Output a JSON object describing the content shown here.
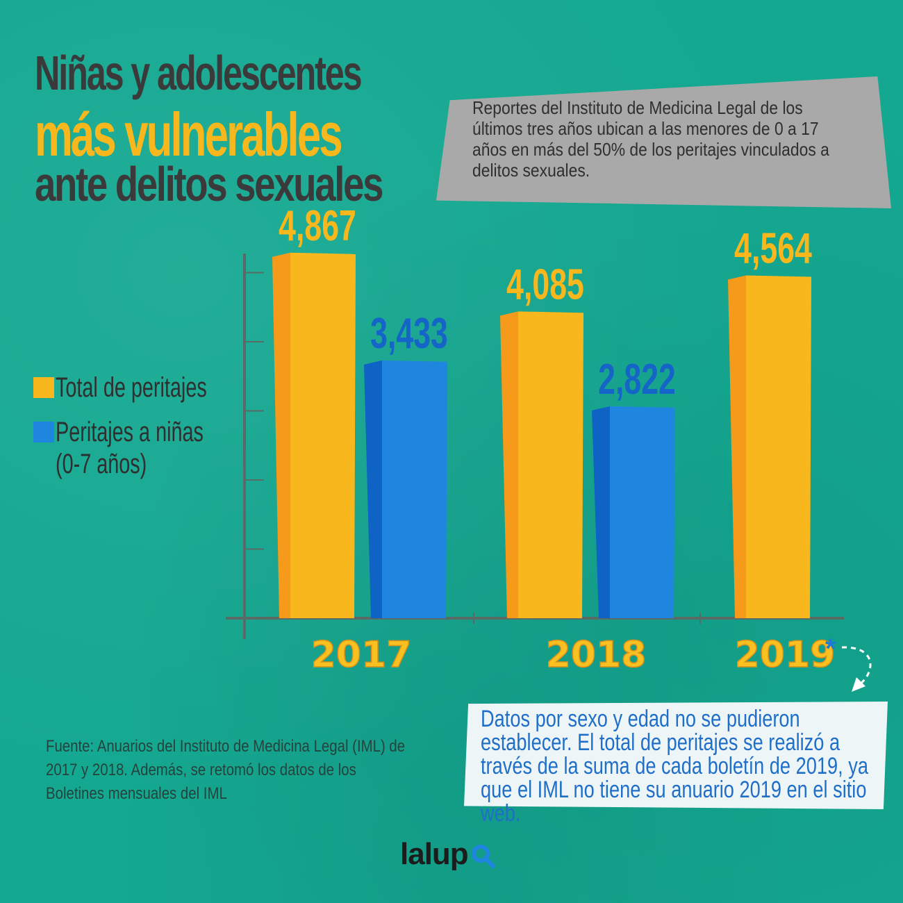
{
  "title": {
    "line1": "Niñas y adolescentes",
    "line2": "más vulnerables",
    "line3": "ante delitos sexuales"
  },
  "description": "Reportes del Instituto de Medicina Legal de los últimos tres años ubican a las menores de 0 a 17 años en más del 50% de los peritajes vinculados a delitos sexuales.",
  "legend": {
    "total": "Total de peritajes",
    "ninas": "Peritajes a niñas (0-7 años)"
  },
  "asterisk": "*",
  "note": "Datos por sexo y edad no se pudieron establecer. El total de peritajes se realizó a través de la suma de cada boletín de 2019, ya que el IML no tiene su anuario 2019 en el sitio web.",
  "source": "Fuente: Anuarios del Instituto de Medicina Legal (IML) de 2017 y 2018. Además, se retomó los datos de los Boletines mensuales del IML",
  "logo": "lalup",
  "colors": {
    "background": "#14a891",
    "total": "#f8b81d",
    "total_side": "#f59a1a",
    "ninas": "#1f86e0",
    "ninas_side": "#0e63c4",
    "total_label": "#f8b81d",
    "ninas_label": "#1565c8",
    "year_label": "#f8c020",
    "axis": "#5a6b66"
  },
  "chart_data": {
    "type": "bar",
    "categories": [
      "2017",
      "2018",
      "2019"
    ],
    "series": [
      {
        "name": "Total de peritajes",
        "values": [
          4867,
          4085,
          4564
        ],
        "labels": [
          "4,867",
          "4,085",
          "4,564"
        ]
      },
      {
        "name": "Peritajes a niñas (0-7 años)",
        "values": [
          3433,
          2822,
          null
        ],
        "labels": [
          "3,433",
          "2,822",
          ""
        ]
      }
    ],
    "ylim": [
      0,
      5000
    ],
    "xlabel": "",
    "ylabel": "",
    "legend": "left"
  }
}
